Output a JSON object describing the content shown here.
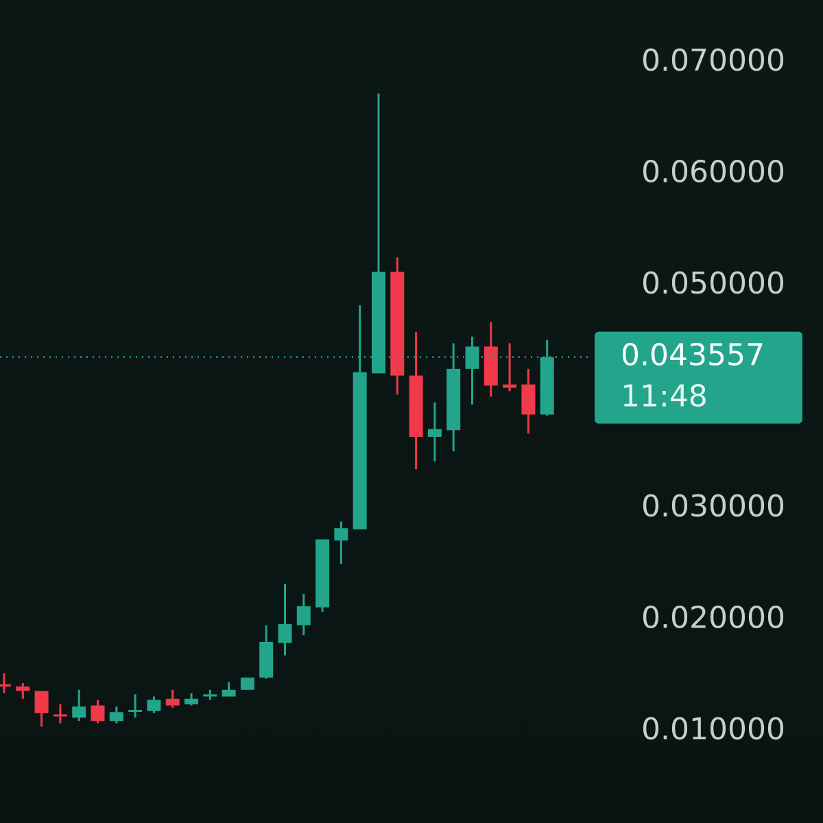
{
  "chart_data": {
    "type": "candlestick",
    "open": [
      0.0142,
      0.014,
      0.0136,
      0.0115,
      0.0112,
      0.0123,
      0.0109,
      0.0118,
      0.0118,
      0.0129,
      0.0124,
      0.0131,
      0.0131,
      0.0137,
      0.0148,
      0.0179,
      0.0195,
      0.0211,
      0.0271,
      0.0281,
      0.0421,
      0.0512,
      0.0419,
      0.0364,
      0.037,
      0.0425,
      0.0445,
      0.0411,
      0.0411,
      0.0384
    ],
    "high": [
      0.0152,
      0.0143,
      0.0136,
      0.0124,
      0.0137,
      0.0128,
      0.0122,
      0.0133,
      0.0131,
      0.0137,
      0.0134,
      0.0137,
      0.0144,
      0.0148,
      0.0195,
      0.0232,
      0.0223,
      0.0272,
      0.0288,
      0.0482,
      0.0672,
      0.0525,
      0.0458,
      0.0395,
      0.0448,
      0.0454,
      0.0467,
      0.0448,
      0.0425,
      0.0451
    ],
    "low": [
      0.0134,
      0.0129,
      0.0104,
      0.0107,
      0.0109,
      0.0107,
      0.0107,
      0.0112,
      0.0116,
      0.0121,
      0.0123,
      0.0128,
      0.0131,
      0.0137,
      0.0147,
      0.0168,
      0.0186,
      0.0207,
      0.025,
      0.0281,
      0.0421,
      0.0402,
      0.0335,
      0.0342,
      0.0351,
      0.0393,
      0.04,
      0.0405,
      0.0367,
      0.0383
    ],
    "close": [
      0.014,
      0.0136,
      0.0116,
      0.0114,
      0.0122,
      0.0109,
      0.0117,
      0.0119,
      0.0128,
      0.0123,
      0.0129,
      0.0133,
      0.0137,
      0.0148,
      0.018,
      0.0196,
      0.0212,
      0.0272,
      0.0282,
      0.0422,
      0.0512,
      0.0419,
      0.0364,
      0.0371,
      0.0425,
      0.0445,
      0.041,
      0.0408,
      0.0384,
      0.043557
    ],
    "up_color": "#22a58b",
    "down_color": "#f0394a",
    "current_price": 0.043557,
    "current_time": "11:48",
    "ylim": [
      0.00175,
      0.0756
    ],
    "yticks": [
      {
        "value": 0.07,
        "label": "0.070000"
      },
      {
        "value": 0.06,
        "label": "0.060000"
      },
      {
        "value": 0.05,
        "label": "0.050000"
      },
      {
        "value": 0.03,
        "label": "0.030000"
      },
      {
        "value": 0.02,
        "label": "0.020000"
      },
      {
        "value": 0.01,
        "label": "0.010000"
      }
    ]
  }
}
